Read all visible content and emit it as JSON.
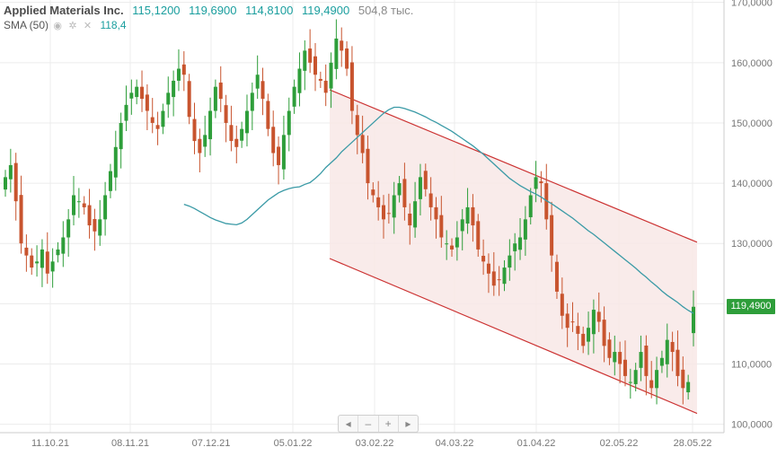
{
  "legend": {
    "ticker": "Applied Materials Inc.",
    "open": "115,1200",
    "high": "119,6900",
    "low": "114,8100",
    "close": "119,4900",
    "volume": "504,8 тыс.",
    "sma_label": "SMA (50)",
    "sma_value": "118,4"
  },
  "navigator": {
    "left": "◂",
    "minus": "–",
    "plus": "+",
    "right": "▸"
  },
  "colors": {
    "up": "#2e9e3a",
    "down": "#c8542e",
    "sma": "#3a9aa6",
    "channel": "#cc3333",
    "channel_fill": "#f8e8e6",
    "grid": "#ececec"
  },
  "chart_data": {
    "type": "candlestick",
    "y_ticks": [
      "100,0000",
      "110,0000",
      "120,0000",
      "130,0000",
      "140,0000",
      "150,0000",
      "160,0000",
      "170,0000"
    ],
    "y_tick_values": [
      100,
      110,
      120,
      130,
      140,
      150,
      160,
      170
    ],
    "ylim": [
      98.6,
      170.4
    ],
    "x_ticks": [
      "11.10.21",
      "08.11.21",
      "07.12.21",
      "05.01.22",
      "03.02.22",
      "04.03.22",
      "01.04.22",
      "02.05.22",
      "28.05.22"
    ],
    "last_price_label": "119,4900",
    "sma_period": 50,
    "closes": [
      141,
      143,
      137,
      130,
      128,
      126,
      127,
      129,
      125,
      127,
      129,
      131,
      134,
      138,
      137,
      136,
      133,
      132,
      134,
      138,
      142,
      146,
      150,
      153,
      155,
      156,
      154,
      152,
      150,
      149,
      152,
      155,
      157,
      159,
      158,
      151,
      147,
      145,
      148,
      152,
      156,
      154,
      150,
      147,
      146,
      149,
      152,
      155,
      158,
      154,
      149,
      145,
      143,
      148,
      152,
      156,
      159,
      162,
      160,
      158,
      157,
      155,
      160,
      164,
      162,
      159,
      152,
      148,
      145,
      140,
      138,
      136,
      134,
      135,
      138,
      140,
      136,
      133,
      137,
      141,
      139,
      136,
      134,
      131,
      130,
      129,
      131,
      134,
      136,
      133,
      129,
      127,
      125,
      123,
      124,
      126,
      128,
      130,
      131,
      134,
      138,
      141,
      140,
      134,
      128,
      122,
      118,
      116,
      117,
      115,
      113,
      116,
      119,
      117,
      113,
      111,
      112,
      110,
      108,
      107,
      109,
      112,
      108,
      106,
      109,
      111,
      114,
      112,
      108,
      106,
      107,
      119.49
    ],
    "sma": [
      136.5,
      136.2,
      135.8,
      135.3,
      134.8,
      134.3,
      133.9,
      133.6,
      133.3,
      133.2,
      133.1,
      133.4,
      134.0,
      134.8,
      135.6,
      136.4,
      137.2,
      137.8,
      138.4,
      138.8,
      139.1,
      139.3,
      139.4,
      139.8,
      140.1,
      140.8,
      141.6,
      142.6,
      143.4,
      144.2,
      145.2,
      146.0,
      146.8,
      147.6,
      148.4,
      149.2,
      150.0,
      150.8,
      151.6,
      152.2,
      152.6,
      152.6,
      152.4,
      152.1,
      151.8,
      151.4,
      151.0,
      150.5,
      150.1,
      149.6,
      149.1,
      148.6,
      148.0,
      147.4,
      146.8,
      146.2,
      145.5,
      144.8,
      144.0,
      143.2,
      142.4,
      141.6,
      140.8,
      140.2,
      139.6,
      139.1,
      138.6,
      138.2,
      137.7,
      137.1,
      136.6,
      136.0,
      135.4,
      134.8,
      134.2,
      133.5,
      132.8,
      132.1,
      131.5,
      130.8,
      130.1,
      129.4,
      128.7,
      128.0,
      127.3,
      126.6,
      125.9,
      125.1,
      124.4,
      123.6,
      122.9,
      122.1,
      121.4,
      120.8,
      120.2,
      119.5,
      118.9,
      118.4
    ],
    "channel": {
      "upper": {
        "from": [
          "03.02.22",
          155.5
        ],
        "to": [
          "28.05.22",
          130.2
        ]
      },
      "lower": {
        "from": [
          "03.02.22",
          127.5
        ],
        "to": [
          "28.05.22",
          101.8
        ]
      }
    }
  }
}
